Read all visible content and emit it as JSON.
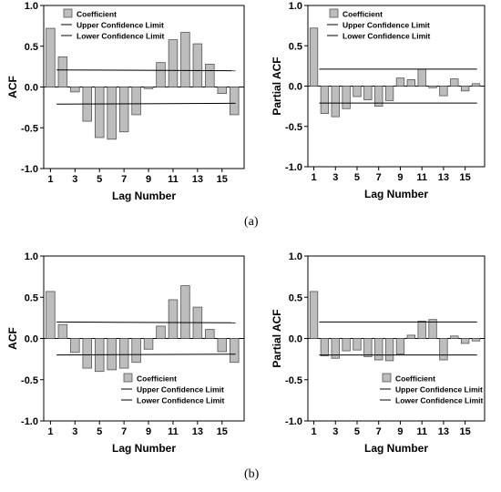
{
  "captions": {
    "top": "(a)",
    "bottom": "(b)"
  },
  "colors": {
    "bar_fill": "#bdbdbd",
    "bar_stroke": "#555555",
    "line": "#000000"
  },
  "chart_data": [
    {
      "type": "bar",
      "panel": "a-acf",
      "xlabel": "Lag Number",
      "ylabel": "ACF",
      "ylim": [
        -1.0,
        1.0
      ],
      "yticks": [
        "1.0",
        "0.5",
        "0.0",
        "-0.5",
        "-1.0"
      ],
      "categories": [
        1,
        2,
        3,
        4,
        5,
        6,
        7,
        8,
        9,
        10,
        11,
        12,
        13,
        14,
        15,
        16
      ],
      "xtick_labels": [
        "1",
        "3",
        "5",
        "7",
        "9",
        "11",
        "13",
        "15"
      ],
      "values": [
        0.72,
        0.37,
        -0.06,
        -0.42,
        -0.62,
        -0.64,
        -0.55,
        -0.34,
        -0.02,
        0.3,
        0.58,
        0.67,
        0.53,
        0.28,
        -0.08,
        -0.34
      ],
      "upper_limit": [
        0.21,
        0.2
      ],
      "lower_limit": [
        -0.21,
        -0.2
      ],
      "legend": [
        "Coefficient",
        "Upper Confidence Limit",
        "Lower Confidence Limit"
      ],
      "legend_position": "top-left"
    },
    {
      "type": "bar",
      "panel": "a-pacf",
      "xlabel": "Lag Number",
      "ylabel": "Partial ACF",
      "ylim": [
        -1.0,
        1.0
      ],
      "yticks": [
        "1.0",
        "0.5",
        "0.0",
        "-0.5",
        "-1.0"
      ],
      "categories": [
        1,
        2,
        3,
        4,
        5,
        6,
        7,
        8,
        9,
        10,
        11,
        12,
        13,
        14,
        15,
        16
      ],
      "xtick_labels": [
        "1",
        "3",
        "5",
        "7",
        "9",
        "11",
        "13",
        "15"
      ],
      "values": [
        0.72,
        -0.34,
        -0.38,
        -0.28,
        -0.13,
        -0.17,
        -0.25,
        -0.18,
        0.1,
        0.08,
        0.21,
        -0.02,
        -0.12,
        0.09,
        -0.06,
        0.03
      ],
      "upper_limit": [
        0.21,
        0.21
      ],
      "lower_limit": [
        -0.21,
        -0.21
      ],
      "legend": [
        "Coefficient",
        "Upper Confidence Limit",
        "Lower Confidence Limit"
      ],
      "legend_position": "top-left"
    },
    {
      "type": "bar",
      "panel": "b-acf",
      "xlabel": "Lag Number",
      "ylabel": "ACF",
      "ylim": [
        -1.0,
        1.0
      ],
      "yticks": [
        "1.0",
        "0.5",
        "0.0",
        "-0.5",
        "-1.0"
      ],
      "categories": [
        1,
        2,
        3,
        4,
        5,
        6,
        7,
        8,
        9,
        10,
        11,
        12,
        13,
        14,
        15,
        16
      ],
      "xtick_labels": [
        "1",
        "3",
        "5",
        "7",
        "9",
        "11",
        "13",
        "15"
      ],
      "values": [
        0.57,
        0.17,
        -0.17,
        -0.36,
        -0.4,
        -0.38,
        -0.36,
        -0.29,
        -0.13,
        0.15,
        0.47,
        0.64,
        0.38,
        0.11,
        -0.16,
        -0.29
      ],
      "upper_limit": [
        0.2,
        0.19
      ],
      "lower_limit": [
        -0.2,
        -0.19
      ],
      "legend": [
        "Coefficient",
        "Upper Confidence Limit",
        "Lower Confidence Limit"
      ],
      "legend_position": "bottom-center"
    },
    {
      "type": "bar",
      "panel": "b-pacf",
      "xlabel": "Lag Number",
      "ylabel": "Partial ACF",
      "ylim": [
        -1.0,
        1.0
      ],
      "yticks": [
        "1.0",
        "0.5",
        "0.0",
        "-0.5",
        "-1.0"
      ],
      "categories": [
        1,
        2,
        3,
        4,
        5,
        6,
        7,
        8,
        9,
        10,
        11,
        12,
        13,
        14,
        15,
        16
      ],
      "xtick_labels": [
        "1",
        "3",
        "5",
        "7",
        "9",
        "11",
        "13",
        "15"
      ],
      "values": [
        0.57,
        -0.21,
        -0.24,
        -0.15,
        -0.14,
        -0.22,
        -0.26,
        -0.27,
        -0.19,
        0.04,
        0.21,
        0.23,
        -0.26,
        0.03,
        -0.06,
        -0.03
      ],
      "upper_limit": [
        0.2,
        0.2
      ],
      "lower_limit": [
        -0.2,
        -0.2
      ],
      "legend": [
        "Coefficient",
        "Upper Confidence Limit",
        "Lower Confidence Limit"
      ],
      "legend_position": "bottom-center"
    }
  ]
}
